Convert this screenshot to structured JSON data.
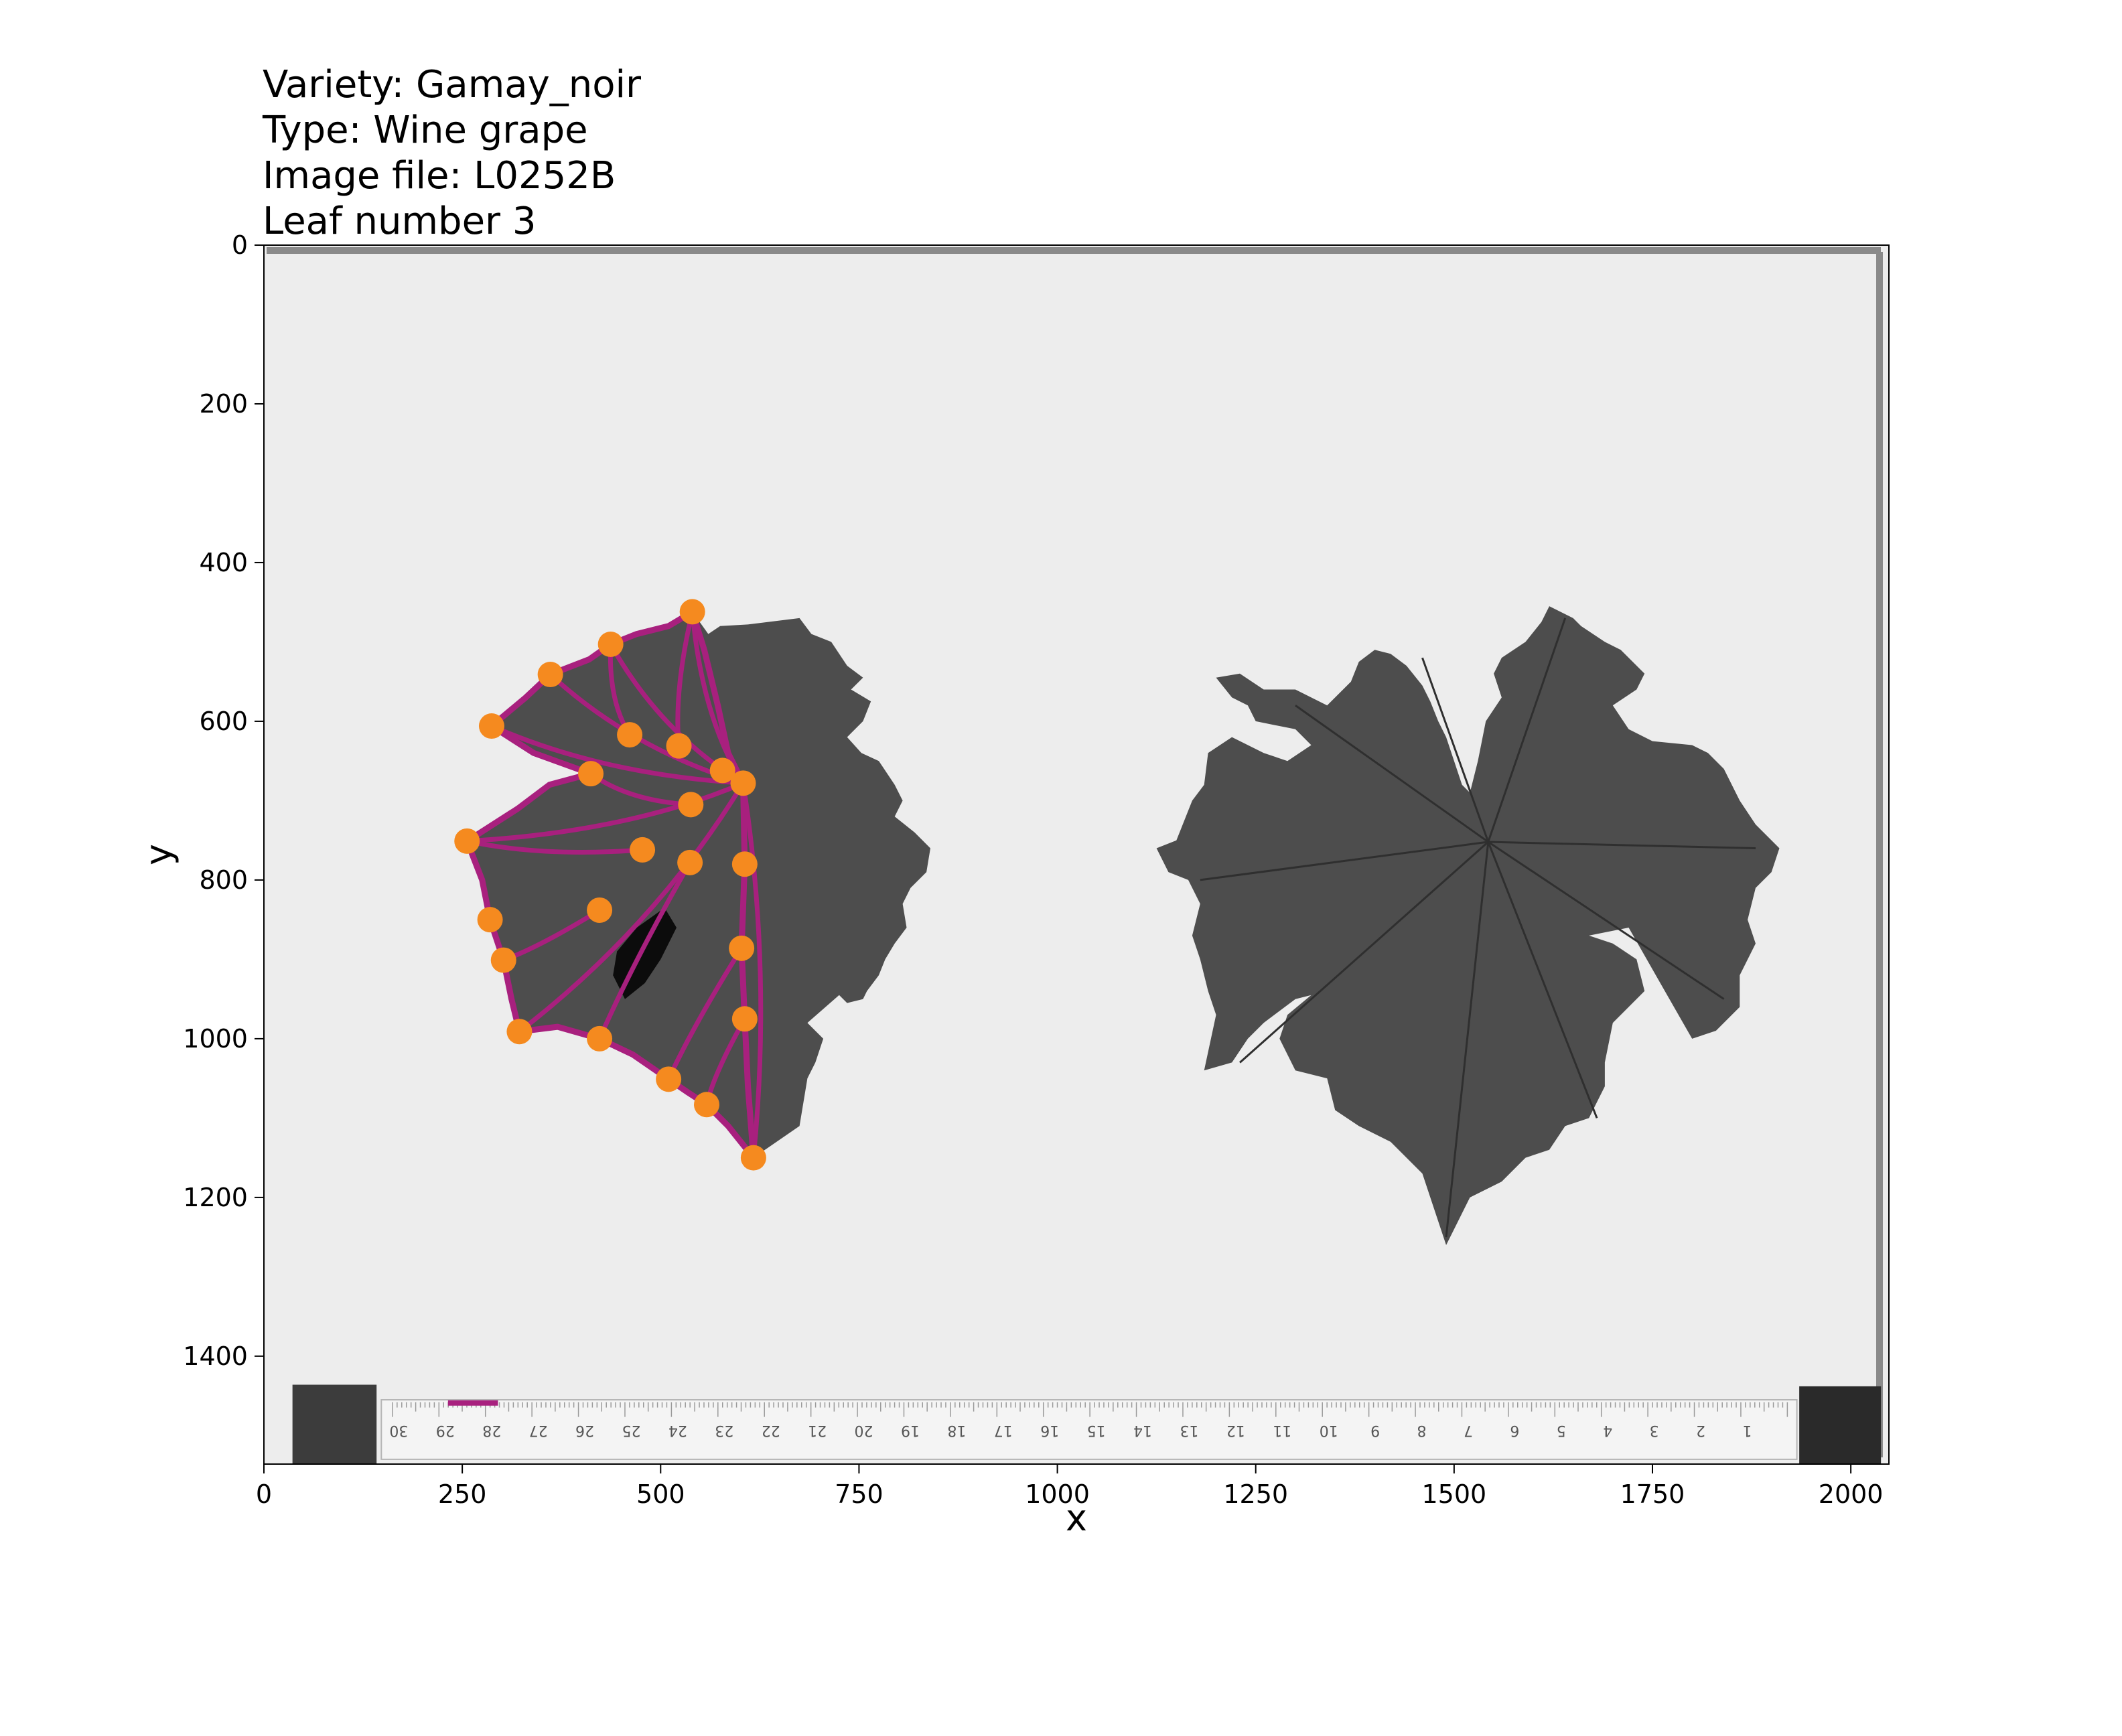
{
  "chart_data": {
    "type": "scatter",
    "title_lines": [
      "Variety: Gamay_noir",
      "Type: Wine grape",
      "Image file: L0252B",
      "Leaf number 3"
    ],
    "xlabel": "x",
    "ylabel": "y",
    "xlim": [
      0,
      2048
    ],
    "ylim": [
      1536,
      0
    ],
    "x_ticks": [
      0,
      250,
      500,
      750,
      1000,
      1250,
      1500,
      1750,
      2000
    ],
    "y_ticks": [
      0,
      200,
      400,
      600,
      800,
      1000,
      1200,
      1400
    ],
    "grid": false,
    "colors": {
      "landmark": "#f58a1f",
      "outline": "#a8207e",
      "leaf": "#4d4d4d",
      "paper": "#ededed"
    },
    "landmarks": [
      {
        "x": 540,
        "y": 462
      },
      {
        "x": 437,
        "y": 503
      },
      {
        "x": 361,
        "y": 541
      },
      {
        "x": 287,
        "y": 606
      },
      {
        "x": 412,
        "y": 666
      },
      {
        "x": 256,
        "y": 751
      },
      {
        "x": 285,
        "y": 850
      },
      {
        "x": 302,
        "y": 901
      },
      {
        "x": 322,
        "y": 991
      },
      {
        "x": 423,
        "y": 1000
      },
      {
        "x": 510,
        "y": 1051
      },
      {
        "x": 558,
        "y": 1083
      },
      {
        "x": 617,
        "y": 1150
      },
      {
        "x": 606,
        "y": 975
      },
      {
        "x": 602,
        "y": 886
      },
      {
        "x": 606,
        "y": 780
      },
      {
        "x": 604,
        "y": 678
      },
      {
        "x": 578,
        "y": 662
      },
      {
        "x": 523,
        "y": 631
      },
      {
        "x": 461,
        "y": 617
      },
      {
        "x": 538,
        "y": 705
      },
      {
        "x": 537,
        "y": 778
      },
      {
        "x": 477,
        "y": 762
      },
      {
        "x": 423,
        "y": 838
      }
    ],
    "outline": [
      {
        "x": 604,
        "y": 678
      },
      {
        "x": 585,
        "y": 640
      },
      {
        "x": 572,
        "y": 580
      },
      {
        "x": 555,
        "y": 510
      },
      {
        "x": 540,
        "y": 462
      },
      {
        "x": 510,
        "y": 480
      },
      {
        "x": 470,
        "y": 490
      },
      {
        "x": 437,
        "y": 503
      },
      {
        "x": 410,
        "y": 522
      },
      {
        "x": 361,
        "y": 541
      },
      {
        "x": 330,
        "y": 570
      },
      {
        "x": 287,
        "y": 606
      },
      {
        "x": 340,
        "y": 640
      },
      {
        "x": 412,
        "y": 666
      },
      {
        "x": 360,
        "y": 680
      },
      {
        "x": 320,
        "y": 710
      },
      {
        "x": 256,
        "y": 751
      },
      {
        "x": 275,
        "y": 800
      },
      {
        "x": 285,
        "y": 850
      },
      {
        "x": 302,
        "y": 901
      },
      {
        "x": 312,
        "y": 950
      },
      {
        "x": 322,
        "y": 991
      },
      {
        "x": 370,
        "y": 985
      },
      {
        "x": 423,
        "y": 1000
      },
      {
        "x": 465,
        "y": 1020
      },
      {
        "x": 510,
        "y": 1051
      },
      {
        "x": 535,
        "y": 1068
      },
      {
        "x": 558,
        "y": 1083
      },
      {
        "x": 585,
        "y": 1110
      },
      {
        "x": 617,
        "y": 1150
      },
      {
        "x": 610,
        "y": 1060
      },
      {
        "x": 606,
        "y": 975
      },
      {
        "x": 602,
        "y": 886
      },
      {
        "x": 606,
        "y": 780
      },
      {
        "x": 604,
        "y": 678
      }
    ],
    "scale_bar": {
      "x1": 232,
      "x2": 295,
      "y": 1459
    },
    "ruler_numbers": [
      "30",
      "29",
      "28",
      "27",
      "26",
      "25",
      "24",
      "23",
      "22",
      "21",
      "20",
      "19",
      "18",
      "17",
      "16",
      "15",
      "14",
      "13",
      "12",
      "11",
      "10",
      "9",
      "8",
      "7",
      "6",
      "5",
      "4",
      "3",
      "2",
      "1"
    ]
  }
}
